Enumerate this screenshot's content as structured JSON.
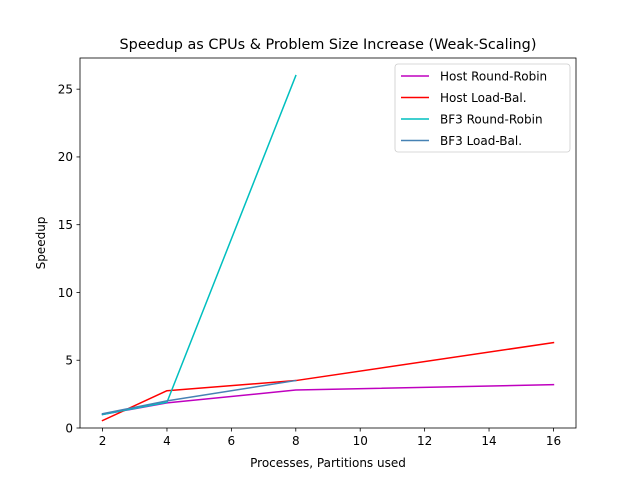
{
  "chart_data": {
    "type": "line",
    "title": "Speedup as CPUs & Problem Size Increase (Weak-Scaling)",
    "xlabel": "Processes, Partitions used",
    "ylabel": "Speedup",
    "xlim": [
      1.3,
      16.7
    ],
    "ylim": [
      0,
      27.3
    ],
    "xticks": [
      2,
      4,
      6,
      8,
      10,
      12,
      14,
      16
    ],
    "yticks": [
      0,
      5,
      10,
      15,
      20,
      25
    ],
    "grid": false,
    "legend_position": "top-right",
    "series": [
      {
        "name": "Host Round-Robin",
        "color": "#bf00bf",
        "x": [
          2,
          4,
          8,
          16
        ],
        "y": [
          1.0,
          1.85,
          2.8,
          3.2
        ]
      },
      {
        "name": "Host Load-Bal.",
        "color": "#ff0000",
        "x": [
          2,
          4,
          8,
          16
        ],
        "y": [
          0.55,
          2.75,
          3.5,
          6.3
        ]
      },
      {
        "name": "BF3 Round-Robin",
        "color": "#00bfbf",
        "x": [
          2,
          4,
          8
        ],
        "y": [
          1.0,
          1.9,
          26.0
        ]
      },
      {
        "name": "BF3 Load-Bal.",
        "color": "#4682b4",
        "x": [
          2,
          4,
          8
        ],
        "y": [
          1.05,
          2.0,
          3.5
        ]
      }
    ]
  }
}
